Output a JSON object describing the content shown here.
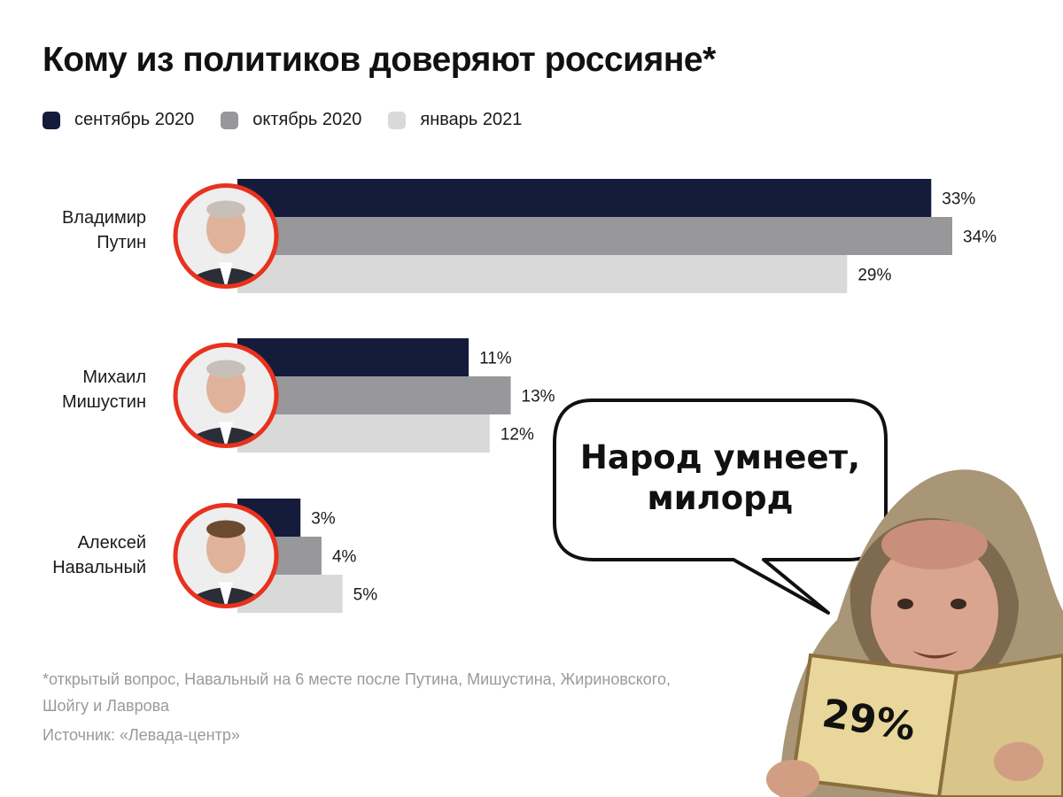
{
  "title": "Кому из политиков доверяют россияне*",
  "legend": [
    {
      "label": "сентябрь 2020",
      "color": "#151b3a"
    },
    {
      "label": "октябрь 2020",
      "color": "#98979a"
    },
    {
      "label": "январь 2021",
      "color": "#d9d9d9"
    }
  ],
  "chart_data": {
    "type": "bar",
    "orientation": "horizontal",
    "title": "Кому из политиков доверяют россияне*",
    "categories": [
      "Владимир Путин",
      "Михаил Мишустин",
      "Алексей Навальный"
    ],
    "category_lines": [
      [
        "Владимир",
        "Путин"
      ],
      [
        "Михаил",
        "Мишустин"
      ],
      [
        "Алексей",
        "Навальный"
      ]
    ],
    "series": [
      {
        "name": "сентябрь 2020",
        "values": [
          33,
          11,
          3
        ],
        "labels": [
          "33%",
          "11%",
          "3%"
        ],
        "color": "#151b3a"
      },
      {
        "name": "октябрь 2020",
        "values": [
          34,
          13,
          4
        ],
        "labels": [
          "34%",
          "13%",
          "4%"
        ],
        "color": "#98979a"
      },
      {
        "name": "январь 2021",
        "values": [
          29,
          12,
          5
        ],
        "labels": [
          "29%",
          "12%",
          "5%"
        ],
        "color": "#d9d9d9"
      }
    ],
    "xlim": [
      0,
      34
    ],
    "grid": false,
    "legend_position": "top-left",
    "avatar_ring_color": "#e8321e"
  },
  "footnote": "*открытый вопрос, Навальный на 6 месте после Путина, Мишустина, Жириновского, Шойгу и Лаврова",
  "source": "Источник: «Левада-центр»",
  "meme": {
    "speech_lines": [
      "Народ умнеет,",
      "милорд"
    ],
    "book_label": "29%"
  },
  "icons": [
    "person-photo-icon",
    "monk-figure-icon",
    "speech-bubble-icon"
  ]
}
